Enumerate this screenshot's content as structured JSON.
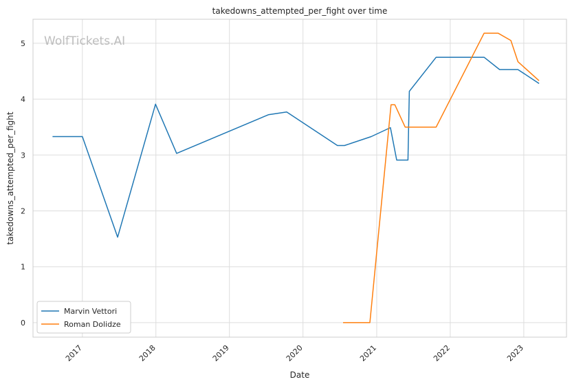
{
  "chart_data": {
    "type": "line",
    "title": "takedowns_attempted_per_fight over time",
    "xlabel": "Date",
    "ylabel": "takedowns_attempted_per_fight",
    "watermark": "WolfTickets.AI",
    "x_ticks": [
      "2017",
      "2018",
      "2019",
      "2020",
      "2021",
      "2022",
      "2023"
    ],
    "y_ticks": [
      "0",
      "1",
      "2",
      "3",
      "4",
      "5"
    ],
    "xlim": [
      "2016-05-01",
      "2023-08-01"
    ],
    "ylim": [
      -0.26,
      5.43
    ],
    "grid": true,
    "legend_position": "lower-left",
    "series": [
      {
        "name": "Marvin Vettori",
        "color": "#1f77b4",
        "points": [
          [
            "2016-08-06",
            3.33
          ],
          [
            "2017-01-01",
            3.33
          ],
          [
            "2017-06-25",
            1.53
          ],
          [
            "2017-12-30",
            3.91
          ],
          [
            "2018-04-14",
            3.03
          ],
          [
            "2019-07-13",
            3.72
          ],
          [
            "2019-10-12",
            3.77
          ],
          [
            "2020-06-20",
            3.17
          ],
          [
            "2020-07-25",
            3.17
          ],
          [
            "2020-12-05",
            3.33
          ],
          [
            "2021-03-10",
            3.49
          ],
          [
            "2021-04-10",
            2.91
          ],
          [
            "2021-06-05",
            2.91
          ],
          [
            "2021-06-12",
            4.14
          ],
          [
            "2021-10-23",
            4.75
          ],
          [
            "2022-06-18",
            4.75
          ],
          [
            "2022-09-03",
            4.53
          ],
          [
            "2022-12-03",
            4.53
          ],
          [
            "2023-03-18",
            4.28
          ]
        ]
      },
      {
        "name": "Roman Dolidze",
        "color": "#ff7f0e",
        "points": [
          [
            "2020-07-18",
            0
          ],
          [
            "2020-11-28",
            0
          ],
          [
            "2021-03-13",
            3.9
          ],
          [
            "2021-04-01",
            3.9
          ],
          [
            "2021-05-22",
            3.5
          ],
          [
            "2021-10-23",
            3.5
          ],
          [
            "2022-06-18",
            5.18
          ],
          [
            "2022-08-27",
            5.18
          ],
          [
            "2022-10-29",
            5.05
          ],
          [
            "2022-12-03",
            4.67
          ],
          [
            "2023-03-18",
            4.33
          ]
        ]
      }
    ]
  }
}
